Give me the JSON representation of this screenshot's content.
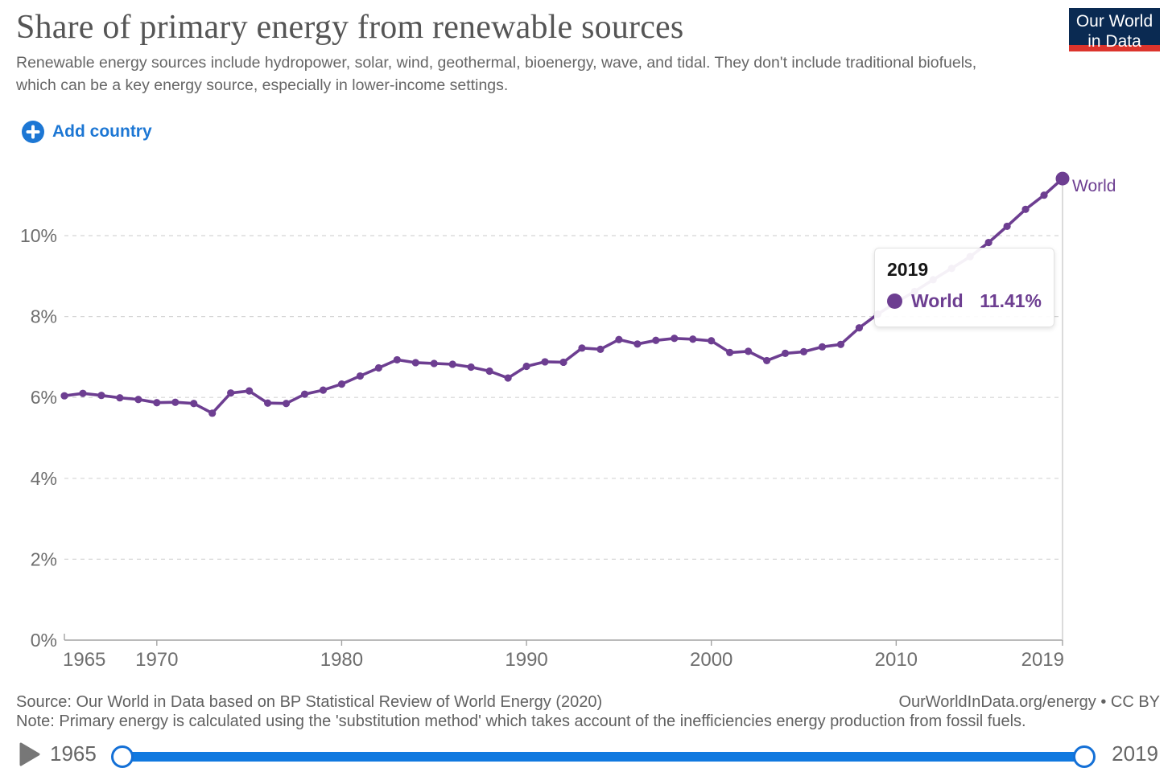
{
  "header": {
    "title": "Share of primary energy from renewable sources",
    "subtitle": "Renewable energy sources include hydropower, solar, wind, geothermal, bioenergy, wave, and tidal. They don't include traditional biofuels, which can be a key energy source, especially in lower-income settings.",
    "logo_line1": "Our World",
    "logo_line2": "in Data"
  },
  "controls": {
    "add_country_label": "Add country"
  },
  "chart_data": {
    "type": "line",
    "title": "Share of primary energy from renewable sources",
    "xlabel": "",
    "ylabel": "",
    "x_ticks": [
      1965,
      1970,
      1980,
      1990,
      2000,
      2010,
      2019
    ],
    "y_ticks": [
      0,
      2,
      4,
      6,
      8,
      10
    ],
    "y_tick_suffix": "%",
    "ylim": [
      0,
      11.9
    ],
    "xlim": [
      1965,
      2019
    ],
    "grid": true,
    "legend_position": "end-of-line-label",
    "series": [
      {
        "name": "World",
        "color": "#6d3e91",
        "x": [
          1965,
          1966,
          1967,
          1968,
          1969,
          1970,
          1971,
          1972,
          1973,
          1974,
          1975,
          1976,
          1977,
          1978,
          1979,
          1980,
          1981,
          1982,
          1983,
          1984,
          1985,
          1986,
          1987,
          1988,
          1989,
          1990,
          1991,
          1992,
          1993,
          1994,
          1995,
          1996,
          1997,
          1998,
          1999,
          2000,
          2001,
          2002,
          2003,
          2004,
          2005,
          2006,
          2007,
          2008,
          2009,
          2010,
          2011,
          2012,
          2013,
          2014,
          2015,
          2016,
          2017,
          2018,
          2019
        ],
        "values": [
          6.04,
          6.1,
          6.05,
          5.99,
          5.95,
          5.87,
          5.88,
          5.85,
          5.61,
          6.11,
          6.16,
          5.86,
          5.85,
          6.08,
          6.18,
          6.33,
          6.53,
          6.73,
          6.93,
          6.86,
          6.84,
          6.82,
          6.75,
          6.65,
          6.48,
          6.77,
          6.88,
          6.87,
          7.22,
          7.19,
          7.43,
          7.32,
          7.41,
          7.46,
          7.44,
          7.4,
          7.11,
          7.14,
          6.91,
          7.09,
          7.13,
          7.25,
          7.31,
          7.72,
          8.06,
          8.35,
          8.62,
          8.91,
          9.19,
          9.48,
          9.83,
          10.23,
          10.65,
          11.0,
          11.41
        ]
      }
    ],
    "end_label": "World",
    "highlighted_point": {
      "year": 2019,
      "value": 11.41
    }
  },
  "tooltip": {
    "year": "2019",
    "entity": "World",
    "value": "11.41%"
  },
  "footer": {
    "source": "Source: Our World in Data based on BP Statistical Review of World Energy (2020)",
    "attribution": "OurWorldInData.org/energy • CC BY",
    "note": "Note: Primary energy is calculated using the 'substitution method' which takes account of the inefficiencies energy production from fossil fuels."
  },
  "timeline": {
    "start_year": "1965",
    "end_year": "2019"
  },
  "colors": {
    "line": "#6d3e91",
    "accent_blue": "#1d77d4",
    "timeline_blue": "#1079e0",
    "logo_navy": "#0a2a52",
    "logo_red": "#dc342c",
    "grid": "#d5d5d5",
    "axis": "#a3a3a3",
    "tick_text": "#6e6e6e"
  }
}
